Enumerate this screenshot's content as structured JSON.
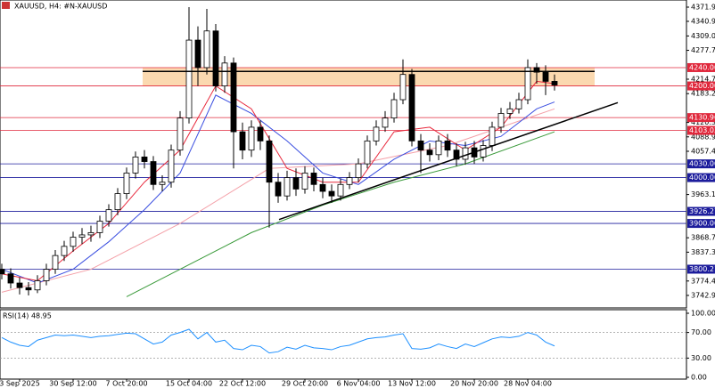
{
  "chart_data": {
    "type": "candlestick",
    "title": "XAUUSD, H4:  #N-XAUUSD",
    "categories": [
      null,
      null,
      "3 Sep 2025",
      null,
      null,
      null,
      null,
      null,
      "30 Sep 12:00",
      null,
      null,
      null,
      null,
      null,
      "7 Oct 20:00",
      null,
      null,
      null,
      null,
      null,
      null,
      "15 Oct 04:00",
      null,
      null,
      null,
      null,
      null,
      "22 Oct 12:00",
      null,
      null,
      null,
      null,
      null,
      null,
      "29 Oct 20:00",
      null,
      null,
      null,
      null,
      null,
      "6 Nov 04:00",
      null,
      null,
      null,
      null,
      null,
      "13 Nov 12:00",
      null,
      null,
      null,
      null,
      null,
      null,
      "20 Nov 20:00",
      null,
      null,
      null,
      null,
      null,
      "28 Nov 04:00",
      null,
      null,
      null
    ],
    "open": [
      3800,
      3790,
      3770,
      3760,
      3755,
      3775,
      3800,
      3830,
      3850,
      3870,
      3875,
      3880,
      3905,
      3930,
      3965,
      4010,
      4045,
      4035,
      3985,
      3990,
      4060,
      4130,
      4300,
      4240,
      4320,
      4200,
      4250,
      4100,
      4060,
      4110,
      4080,
      3990,
      3960,
      4000,
      3975,
      4010,
      3985,
      3970,
      3960,
      3985,
      4000,
      4030,
      4080,
      4110,
      4130,
      4170,
      4225,
      4080,
      4060,
      4050,
      4080,
      4060,
      4040,
      4065,
      4045,
      4070,
      4110,
      4140,
      4150,
      4170,
      4240,
      4230,
      4210
    ],
    "high": [
      3812,
      3802,
      3782,
      3772,
      3787,
      3812,
      3842,
      3862,
      3882,
      3890,
      3895,
      3917,
      3942,
      3977,
      4022,
      4057,
      4060,
      4047,
      4005,
      4072,
      4145,
      4372,
      4330,
      4368,
      4335,
      4265,
      4262,
      4120,
      4125,
      4125,
      4092,
      4010,
      4015,
      4020,
      4025,
      4022,
      4000,
      3985,
      3998,
      4012,
      4042,
      4092,
      4125,
      4145,
      4185,
      4258,
      4237,
      4095,
      4075,
      4092,
      4095,
      4075,
      4078,
      4080,
      4082,
      4122,
      4152,
      4165,
      4185,
      4258,
      4250,
      4245,
      4225
    ],
    "low": [
      3778,
      3758,
      3745,
      3743,
      3748,
      3765,
      3790,
      3818,
      3838,
      3855,
      3860,
      3868,
      3893,
      3918,
      3953,
      3998,
      4020,
      3973,
      3970,
      3978,
      4048,
      4118,
      4200,
      4225,
      4188,
      4185,
      4020,
      4040,
      4045,
      4060,
      3891,
      3945,
      3950,
      3960,
      3965,
      3970,
      3955,
      3945,
      3950,
      3975,
      3990,
      4020,
      4070,
      4100,
      4120,
      4160,
      4068,
      4010,
      4035,
      4038,
      4045,
      4025,
      4028,
      4030,
      4035,
      4058,
      4098,
      4128,
      4140,
      4160,
      4205,
      4180,
      4190
    ],
    "close": [
      3790,
      3770,
      3760,
      3755,
      3775,
      3800,
      3830,
      3850,
      3870,
      3875,
      3880,
      3905,
      3930,
      3965,
      4010,
      4045,
      4035,
      3985,
      3990,
      4060,
      4130,
      4300,
      4240,
      4320,
      4200,
      4250,
      4100,
      4060,
      4110,
      4080,
      3990,
      3960,
      4000,
      3975,
      4010,
      3985,
      3970,
      3960,
      3985,
      4000,
      4030,
      4080,
      4110,
      4130,
      4170,
      4225,
      4080,
      4060,
      4050,
      4080,
      4060,
      4040,
      4065,
      4045,
      4070,
      4110,
      4140,
      4150,
      4170,
      4240,
      4230,
      4210,
      4202
    ],
    "up_color": "#ffffff",
    "down_color": "#000000",
    "ylim": [
      3715.7,
      4387.5
    ],
    "yticks": [
      {
        "value": 4371.95,
        "label": "4371.95"
      },
      {
        "value": 4340.95,
        "label": "4340.95"
      },
      {
        "value": 4309.05,
        "label": "4309.05"
      },
      {
        "value": 4277.7,
        "label": "4277.70"
      },
      {
        "value": 4214.7,
        "label": "4214.70"
      },
      {
        "value": 4183.25,
        "label": "4183.25"
      },
      {
        "value": 4120.35,
        "label": "4120.35"
      },
      {
        "value": 4088.9,
        "label": "4088.90"
      },
      {
        "value": 4057.45,
        "label": "4057.45"
      },
      {
        "value": 3963.1,
        "label": "3963.10"
      },
      {
        "value": 3868.75,
        "label": "3868.75"
      },
      {
        "value": 3837.3,
        "label": "3837.30"
      },
      {
        "value": 3774.4,
        "label": "3774.40"
      },
      {
        "value": 3742.95,
        "label": "3742.95"
      }
    ],
    "levels": [
      {
        "value": 4240,
        "label": "4240.00",
        "color": "#e0283c"
      },
      {
        "value": 4200,
        "label": "4200.00",
        "color": "#e0283c"
      },
      {
        "value": 4130.96,
        "label": "4130.96",
        "color": "#e0283c"
      },
      {
        "value": 4103.03,
        "label": "4103.03",
        "color": "#e0283c"
      },
      {
        "value": 4030,
        "label": "4030.00",
        "color": "#1c1c9c"
      },
      {
        "value": 4000,
        "label": "4000.00",
        "color": "#1c1c9c"
      },
      {
        "value": 3926.27,
        "label": "3926.27",
        "color": "#1c1c9c"
      },
      {
        "value": 3900,
        "label": "3900.00",
        "color": "#1c1c9c"
      },
      {
        "value": 3800.21,
        "label": "3800.21",
        "color": "#1c1c9c"
      }
    ],
    "zone": {
      "x": [
        15.8,
        66.5
      ],
      "y": [
        4200,
        4240
      ],
      "color": "#fbd9b0"
    },
    "lines": [
      {
        "x": [
          15.8,
          66.5
        ],
        "y": [
          4231.7,
          4231.7
        ],
        "color": "#000000"
      },
      {
        "x": [
          31.1,
          69.1
        ],
        "y": [
          3908.5,
          4163.6
        ],
        "color": "#000000"
      }
    ],
    "ma": [
      {
        "color": "#f4a0a8",
        "x": [
          0,
          10,
          20,
          30,
          40,
          50,
          62
        ],
        "values": [
          3750,
          3800,
          3900,
          4020,
          4030,
          4070,
          4150
        ]
      },
      {
        "color": "#3a9a3a",
        "x": [
          14,
          20,
          28,
          36,
          44,
          52,
          62
        ],
        "values": [
          3740,
          3800,
          3880,
          3940,
          3990,
          4030,
          4100
        ]
      },
      {
        "color": "#3a4ee0",
        "x": [
          0,
          4,
          8,
          12,
          16,
          20,
          24,
          28,
          32,
          36,
          40,
          44,
          48,
          52,
          56,
          60,
          62
        ],
        "values": [
          3800,
          3770,
          3800,
          3860,
          3930,
          4010,
          4180,
          4140,
          4080,
          4010,
          3985,
          4040,
          4080,
          4070,
          4090,
          4150,
          4165
        ]
      },
      {
        "color": "#e8283c",
        "x": [
          0,
          4,
          8,
          12,
          16,
          20,
          24,
          28,
          32,
          36,
          40,
          44,
          48,
          52,
          56,
          60,
          62
        ],
        "values": [
          3790,
          3775,
          3840,
          3900,
          3990,
          4060,
          4200,
          4150,
          4020,
          3990,
          3990,
          4100,
          4110,
          4060,
          4110,
          4210,
          4205
        ]
      }
    ],
    "rsi": {
      "title": "RSI(14) 48.95",
      "color": "#1e90ff",
      "values": [
        62,
        55,
        50,
        48,
        58,
        62,
        66,
        65,
        66,
        64,
        62,
        64,
        65,
        67,
        69,
        68,
        60,
        52,
        55,
        66,
        70,
        75,
        60,
        70,
        55,
        58,
        45,
        43,
        50,
        48,
        38,
        40,
        47,
        44,
        50,
        46,
        45,
        43,
        48,
        50,
        55,
        60,
        62,
        63,
        66,
        68,
        45,
        44,
        46,
        52,
        48,
        45,
        52,
        48,
        54,
        60,
        63,
        62,
        64,
        70,
        66,
        55,
        48.95
      ],
      "ylim": [
        0,
        100
      ],
      "yticks": [
        {
          "value": 100,
          "label": "100.00"
        },
        {
          "value": 70,
          "label": "70.00"
        },
        {
          "value": 30,
          "label": "30.00"
        },
        {
          "value": 0,
          "label": "0.00"
        }
      ],
      "levels": [
        70,
        30
      ]
    }
  }
}
